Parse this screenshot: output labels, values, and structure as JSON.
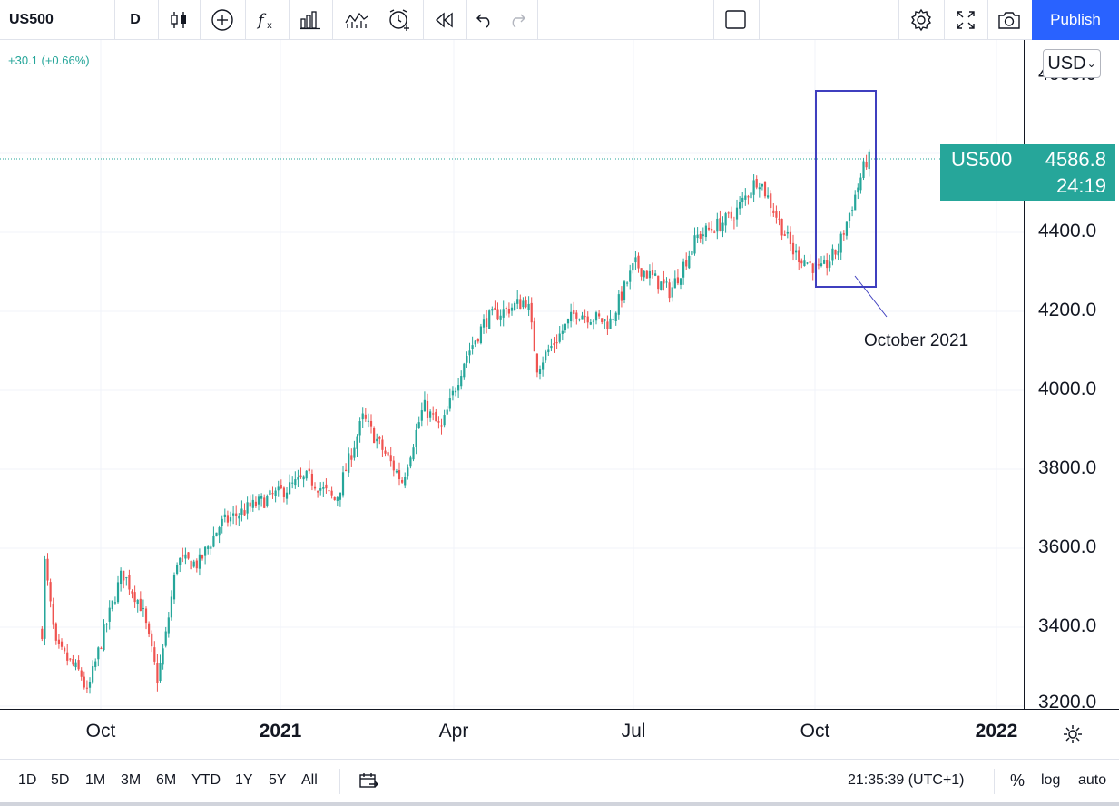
{
  "toolbar": {
    "symbol": "US500",
    "interval": "D",
    "icons": [
      "candles-icon",
      "add-indicator-icon",
      "fx-icon",
      "bars-icon",
      "compare-icon",
      "alert-icon",
      "replay-icon",
      "undo-icon",
      "redo-icon",
      "rectangle-icon",
      "settings-icon",
      "fullscreen-icon",
      "camera-icon"
    ],
    "publish_label": "Publish"
  },
  "header": {
    "change": "+30.1 (+0.66%)"
  },
  "currency": {
    "label": "USD",
    "chevron": "⌄"
  },
  "price_tag": {
    "symbol": "US500",
    "price": "4586.8",
    "countdown": "24:19"
  },
  "annotation": {
    "text": "October 2021"
  },
  "price_scale": [
    "4600.0",
    "4400.0",
    "4200.0",
    "4000.0",
    "3800.0",
    "3600.0",
    "3400.0",
    "3200.0"
  ],
  "time_axis": [
    {
      "label": "Oct",
      "bold": false
    },
    {
      "label": "2021",
      "bold": true
    },
    {
      "label": "Apr",
      "bold": false
    },
    {
      "label": "Jul",
      "bold": false
    },
    {
      "label": "Oct",
      "bold": false
    },
    {
      "label": "2022",
      "bold": true
    }
  ],
  "bottom": {
    "ranges": [
      "1D",
      "5D",
      "1M",
      "3M",
      "6M",
      "YTD",
      "1Y",
      "5Y",
      "All"
    ],
    "time": "21:35:39 (UTC+1)",
    "percent": "%",
    "log": "log",
    "auto": "auto"
  },
  "colors": {
    "up": "#26a69a",
    "down": "#ef5350",
    "accent": "#2962ff",
    "box": "#3f3fbf"
  },
  "chart_data": {
    "type": "candlestick",
    "ylim": [
      3200,
      4800
    ],
    "series_close": [
      [
        "2020-09-01",
        3390
      ],
      [
        "2020-09-02",
        3580
      ],
      [
        "2020-09-08",
        3350
      ],
      [
        "2020-09-21",
        3280
      ],
      [
        "2020-09-24",
        3230
      ],
      [
        "2020-10-01",
        3360
      ],
      [
        "2020-10-12",
        3540
      ],
      [
        "2020-10-22",
        3450
      ],
      [
        "2020-10-30",
        3270
      ],
      [
        "2020-11-03",
        3370
      ],
      [
        "2020-11-09",
        3570
      ],
      [
        "2020-11-20",
        3560
      ],
      [
        "2020-12-01",
        3660
      ],
      [
        "2020-12-15",
        3700
      ],
      [
        "2020-12-31",
        3740
      ],
      [
        "2021-01-15",
        3780
      ],
      [
        "2021-01-29",
        3720
      ],
      [
        "2021-02-12",
        3930
      ],
      [
        "2021-03-04",
        3770
      ],
      [
        "2021-03-15",
        3960
      ],
      [
        "2021-03-24",
        3900
      ],
      [
        "2021-04-05",
        4080
      ],
      [
        "2021-04-16",
        4180
      ],
      [
        "2021-05-07",
        4230
      ],
      [
        "2021-05-12",
        4060
      ],
      [
        "2021-06-01",
        4200
      ],
      [
        "2021-06-18",
        4170
      ],
      [
        "2021-07-01",
        4320
      ],
      [
        "2021-07-19",
        4250
      ],
      [
        "2021-08-02",
        4390
      ],
      [
        "2021-08-20",
        4440
      ],
      [
        "2021-09-02",
        4540
      ],
      [
        "2021-09-20",
        4350
      ],
      [
        "2021-10-04",
        4300
      ],
      [
        "2021-10-13",
        4360
      ],
      [
        "2021-10-27",
        4580
      ],
      [
        "2021-10-29",
        4586.8
      ]
    ]
  }
}
